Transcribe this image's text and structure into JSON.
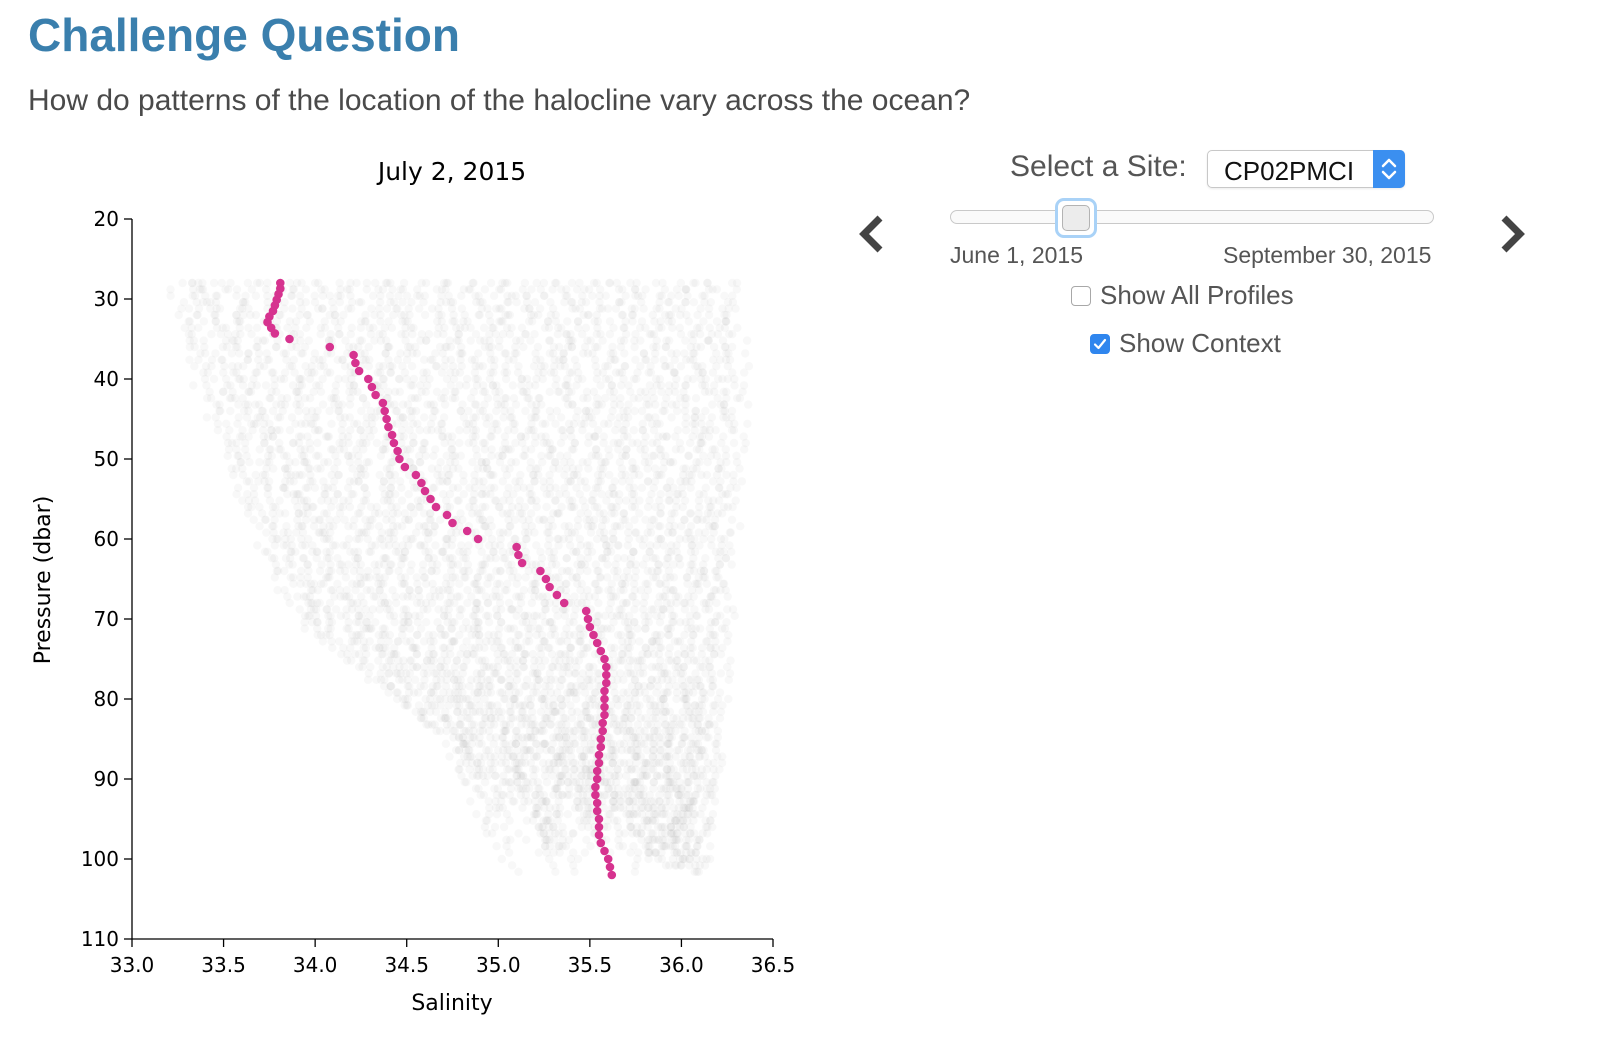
{
  "page": {
    "heading": "Challenge Question",
    "question": "How do patterns of the location of the halocline vary across the ocean?"
  },
  "controls": {
    "site_label": "Select a Site:",
    "site_value": "CP02PMCI",
    "slider": {
      "start_label": "June 1, 2015",
      "end_label": "September 30, 2015",
      "position": 0.26
    },
    "show_all_profiles": {
      "label": "Show All Profiles",
      "checked": false
    },
    "show_context": {
      "label": "Show Context",
      "checked": true
    },
    "accent_color": "#2f86ee",
    "prev_icon": "chevron-left-icon",
    "next_icon": "chevron-right-icon"
  },
  "chart_data": {
    "type": "scatter",
    "title": "July 2, 2015",
    "xlabel": "Salinity",
    "ylabel": "Pressure (dbar)",
    "xlim": [
      33.0,
      36.5
    ],
    "ylim": [
      20,
      110
    ],
    "y_inverted": true,
    "x_ticks": [
      "33.0",
      "33.5",
      "34.0",
      "34.5",
      "35.0",
      "35.5",
      "36.0",
      "36.5"
    ],
    "y_ticks": [
      "20",
      "30",
      "40",
      "50",
      "60",
      "70",
      "80",
      "90",
      "100",
      "110"
    ],
    "highlight_color": "#d6338f",
    "context_color": "#9a9a9a",
    "series": [
      {
        "role": "selected-profile",
        "points": [
          [
            33.81,
            28
          ],
          [
            33.81,
            28.7
          ],
          [
            33.8,
            29.4
          ],
          [
            33.79,
            30.1
          ],
          [
            33.78,
            30.8
          ],
          [
            33.77,
            31.5
          ],
          [
            33.75,
            32.2
          ],
          [
            33.74,
            32.9
          ],
          [
            33.76,
            33.6
          ],
          [
            33.78,
            34.3
          ],
          [
            33.86,
            35
          ],
          [
            34.08,
            36
          ],
          [
            34.21,
            37
          ],
          [
            34.22,
            38
          ],
          [
            34.24,
            39
          ],
          [
            34.29,
            40
          ],
          [
            34.31,
            41
          ],
          [
            34.33,
            42
          ],
          [
            34.37,
            43
          ],
          [
            34.38,
            44
          ],
          [
            34.39,
            45
          ],
          [
            34.4,
            46
          ],
          [
            34.42,
            47
          ],
          [
            34.43,
            48
          ],
          [
            34.45,
            49
          ],
          [
            34.46,
            50
          ],
          [
            34.49,
            51
          ],
          [
            34.55,
            52
          ],
          [
            34.58,
            53
          ],
          [
            34.6,
            54
          ],
          [
            34.63,
            55
          ],
          [
            34.66,
            56
          ],
          [
            34.72,
            57
          ],
          [
            34.75,
            58
          ],
          [
            34.83,
            59
          ],
          [
            34.89,
            60
          ],
          [
            35.1,
            61
          ],
          [
            35.11,
            62
          ],
          [
            35.13,
            63
          ],
          [
            35.23,
            64
          ],
          [
            35.26,
            65
          ],
          [
            35.28,
            66
          ],
          [
            35.32,
            67
          ],
          [
            35.36,
            68
          ],
          [
            35.48,
            69
          ],
          [
            35.49,
            70
          ],
          [
            35.5,
            71
          ],
          [
            35.52,
            72
          ],
          [
            35.54,
            73
          ],
          [
            35.56,
            74
          ],
          [
            35.58,
            75
          ],
          [
            35.59,
            76
          ],
          [
            35.59,
            77
          ],
          [
            35.59,
            78
          ],
          [
            35.58,
            79
          ],
          [
            35.58,
            80
          ],
          [
            35.58,
            81
          ],
          [
            35.58,
            82
          ],
          [
            35.57,
            83
          ],
          [
            35.57,
            84
          ],
          [
            35.56,
            85
          ],
          [
            35.56,
            86
          ],
          [
            35.55,
            87
          ],
          [
            35.55,
            88
          ],
          [
            35.54,
            89
          ],
          [
            35.54,
            90
          ],
          [
            35.53,
            91
          ],
          [
            35.53,
            92
          ],
          [
            35.54,
            93
          ],
          [
            35.54,
            94
          ],
          [
            35.55,
            95
          ],
          [
            35.55,
            96
          ],
          [
            35.55,
            97
          ],
          [
            35.56,
            98
          ],
          [
            35.58,
            99
          ],
          [
            35.6,
            100
          ],
          [
            35.61,
            101
          ],
          [
            35.62,
            102
          ]
        ]
      }
    ],
    "context_profiles": {
      "profile_count": 60,
      "envelope": [
        {
          "pressure": 28,
          "min": 33.2,
          "max": 36.3
        },
        {
          "pressure": 40,
          "min": 33.35,
          "max": 36.35
        },
        {
          "pressure": 55,
          "min": 33.6,
          "max": 36.3
        },
        {
          "pressure": 70,
          "min": 33.9,
          "max": 36.25
        },
        {
          "pressure": 85,
          "min": 34.7,
          "max": 36.2
        },
        {
          "pressure": 102,
          "min": 35.1,
          "max": 36.1
        }
      ]
    }
  }
}
